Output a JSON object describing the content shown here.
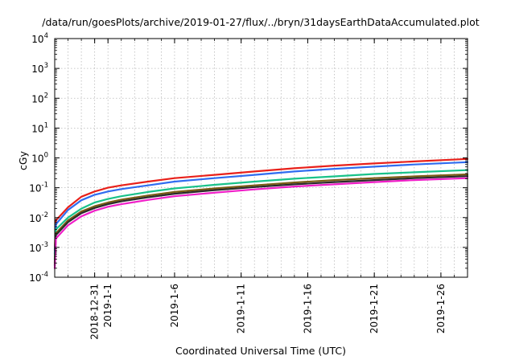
{
  "chart_data": {
    "type": "line",
    "title": "/data/run/goesPlots/archive/2019-01-27/flux/../bryn/31daysEarthDataAccumulated.plot",
    "xlabel": "Coordinated Universal Time (UTC)",
    "ylabel": "cGy",
    "yscale": "log",
    "ylim": [
      0.0001,
      10000
    ],
    "xlim": [
      "2018-12-28",
      "2019-01-28"
    ],
    "y_ticks": [
      {
        "base": "10",
        "exp": "-4",
        "value": 0.0001
      },
      {
        "base": "10",
        "exp": "-3",
        "value": 0.001
      },
      {
        "base": "10",
        "exp": "-2",
        "value": 0.01
      },
      {
        "base": "10",
        "exp": "-1",
        "value": 0.1
      },
      {
        "base": "10",
        "exp": "0",
        "value": 1
      },
      {
        "base": "10",
        "exp": "1",
        "value": 10
      },
      {
        "base": "10",
        "exp": "2",
        "value": 100
      },
      {
        "base": "10",
        "exp": "3",
        "value": 1000
      },
      {
        "base": "10",
        "exp": "4",
        "value": 10000
      }
    ],
    "x_ticks": [
      {
        "label": "2018-12-31",
        "date": "2018-12-31"
      },
      {
        "label": "2019-1-1",
        "date": "2019-01-01"
      },
      {
        "label": "2019-1-6",
        "date": "2019-01-06"
      },
      {
        "label": "2019-1-11",
        "date": "2019-01-11"
      },
      {
        "label": "2019-1-16",
        "date": "2019-01-16"
      },
      {
        "label": "2019-1-21",
        "date": "2019-01-21"
      },
      {
        "label": "2019-1-26",
        "date": "2019-01-26"
      }
    ],
    "grid": true,
    "series": [
      {
        "color": "#e8201a",
        "x": [
          "2018-12-28",
          "2018-12-28",
          "2018-12-29",
          "2018-12-30",
          "2018-12-31",
          "2019-01-01",
          "2019-01-02",
          "2019-01-04",
          "2019-01-06",
          "2019-01-09",
          "2019-01-12",
          "2019-01-15",
          "2019-01-18",
          "2019-01-21",
          "2019-01-24",
          "2019-01-28"
        ],
        "y": [
          0.0008,
          0.008,
          0.022,
          0.05,
          0.075,
          0.1,
          0.12,
          0.16,
          0.21,
          0.27,
          0.35,
          0.45,
          0.55,
          0.65,
          0.76,
          0.92
        ]
      },
      {
        "color": "#2f6cf0",
        "x": [
          "2018-12-28",
          "2018-12-28",
          "2018-12-29",
          "2018-12-30",
          "2018-12-31",
          "2019-01-01",
          "2019-01-02",
          "2019-01-04",
          "2019-01-06",
          "2019-01-09",
          "2019-01-12",
          "2019-01-15",
          "2019-01-18",
          "2019-01-21",
          "2019-01-24",
          "2019-01-28"
        ],
        "y": [
          0.0006,
          0.006,
          0.018,
          0.038,
          0.058,
          0.075,
          0.09,
          0.12,
          0.16,
          0.21,
          0.27,
          0.35,
          0.43,
          0.51,
          0.6,
          0.72
        ]
      },
      {
        "color": "#19c28a",
        "x": [
          "2018-12-28",
          "2018-12-28",
          "2018-12-29",
          "2018-12-30",
          "2018-12-31",
          "2019-01-01",
          "2019-01-02",
          "2019-01-04",
          "2019-01-06",
          "2019-01-09",
          "2019-01-12",
          "2019-01-15",
          "2019-01-18",
          "2019-01-21",
          "2019-01-24",
          "2019-01-28"
        ],
        "y": [
          0.0004,
          0.004,
          0.01,
          0.02,
          0.032,
          0.042,
          0.052,
          0.072,
          0.095,
          0.125,
          0.16,
          0.2,
          0.24,
          0.29,
          0.33,
          0.39
        ]
      },
      {
        "color": "#7a5c14",
        "x": [
          "2018-12-28",
          "2018-12-28",
          "2018-12-29",
          "2018-12-30",
          "2018-12-31",
          "2019-01-01",
          "2019-01-02",
          "2019-01-04",
          "2019-01-06",
          "2019-01-09",
          "2019-01-12",
          "2019-01-15",
          "2019-01-18",
          "2019-01-21",
          "2019-01-24",
          "2019-01-28"
        ],
        "y": [
          0.0003,
          0.003,
          0.008,
          0.016,
          0.024,
          0.032,
          0.04,
          0.055,
          0.072,
          0.095,
          0.12,
          0.15,
          0.18,
          0.21,
          0.24,
          0.28
        ]
      },
      {
        "color": "#2b2b2b",
        "x": [
          "2018-12-28",
          "2018-12-28",
          "2018-12-29",
          "2018-12-30",
          "2018-12-31",
          "2019-01-01",
          "2019-01-02",
          "2019-01-04",
          "2019-01-06",
          "2019-01-09",
          "2019-01-12",
          "2019-01-15",
          "2019-01-18",
          "2019-01-21",
          "2019-01-24",
          "2019-01-28"
        ],
        "y": [
          0.00025,
          0.0026,
          0.007,
          0.014,
          0.021,
          0.028,
          0.035,
          0.048,
          0.063,
          0.083,
          0.105,
          0.13,
          0.155,
          0.18,
          0.21,
          0.245
        ]
      },
      {
        "color": "#f01ec8",
        "x": [
          "2018-12-28",
          "2018-12-28",
          "2018-12-29",
          "2018-12-30",
          "2018-12-31",
          "2019-01-01",
          "2019-01-02",
          "2019-01-04",
          "2019-01-06",
          "2019-01-09",
          "2019-01-12",
          "2019-01-15",
          "2019-01-18",
          "2019-01-21",
          "2019-01-24",
          "2019-01-28"
        ],
        "y": [
          0.0002,
          0.002,
          0.0055,
          0.011,
          0.017,
          0.023,
          0.028,
          0.039,
          0.052,
          0.068,
          0.088,
          0.11,
          0.13,
          0.155,
          0.18,
          0.21
        ]
      }
    ]
  }
}
